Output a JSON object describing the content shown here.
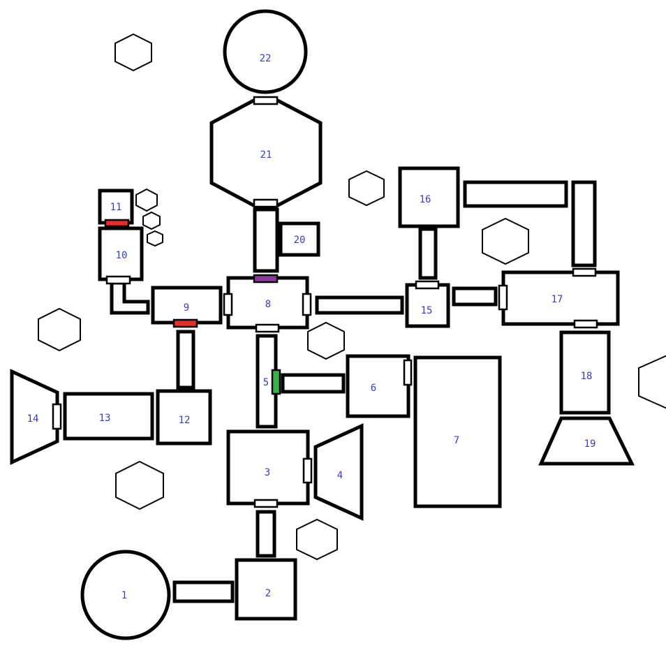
{
  "colors": {
    "label": "#3b3bc4",
    "stroke": "#000000",
    "door_plain": "#ffffff",
    "door_red": "#e03030",
    "door_green": "#3cb04a",
    "door_purple": "#8a3a9a"
  },
  "rooms": [
    {
      "id": "1",
      "label": "1"
    },
    {
      "id": "2",
      "label": "2"
    },
    {
      "id": "3",
      "label": "3"
    },
    {
      "id": "4",
      "label": "4"
    },
    {
      "id": "5",
      "label": "5"
    },
    {
      "id": "6",
      "label": "6"
    },
    {
      "id": "7",
      "label": "7"
    },
    {
      "id": "8",
      "label": "8"
    },
    {
      "id": "9",
      "label": "9"
    },
    {
      "id": "10",
      "label": "10"
    },
    {
      "id": "11",
      "label": "11"
    },
    {
      "id": "12",
      "label": "12"
    },
    {
      "id": "13",
      "label": "13"
    },
    {
      "id": "14",
      "label": "14"
    },
    {
      "id": "15",
      "label": "15"
    },
    {
      "id": "16",
      "label": "16"
    },
    {
      "id": "17",
      "label": "17"
    },
    {
      "id": "18",
      "label": "18"
    },
    {
      "id": "19",
      "label": "19"
    },
    {
      "id": "20",
      "label": "20"
    },
    {
      "id": "21",
      "label": "21"
    },
    {
      "id": "22",
      "label": "22"
    }
  ],
  "doors": {
    "d21_22": "plain",
    "d20_21": "plain",
    "d8_top": "purple",
    "d11_10": "red",
    "d10_bottom": "plain",
    "d9_bottom": "red",
    "d8_left": "plain",
    "d8_right": "plain",
    "d8_bottom": "plain",
    "d5_6": "green",
    "d6_left": "plain",
    "d15_top": "plain",
    "d17_left": "plain",
    "d17_top": "plain",
    "d17_bottom": "plain",
    "d14_right": "plain",
    "d3_right": "plain",
    "d3_bottom": "plain"
  }
}
